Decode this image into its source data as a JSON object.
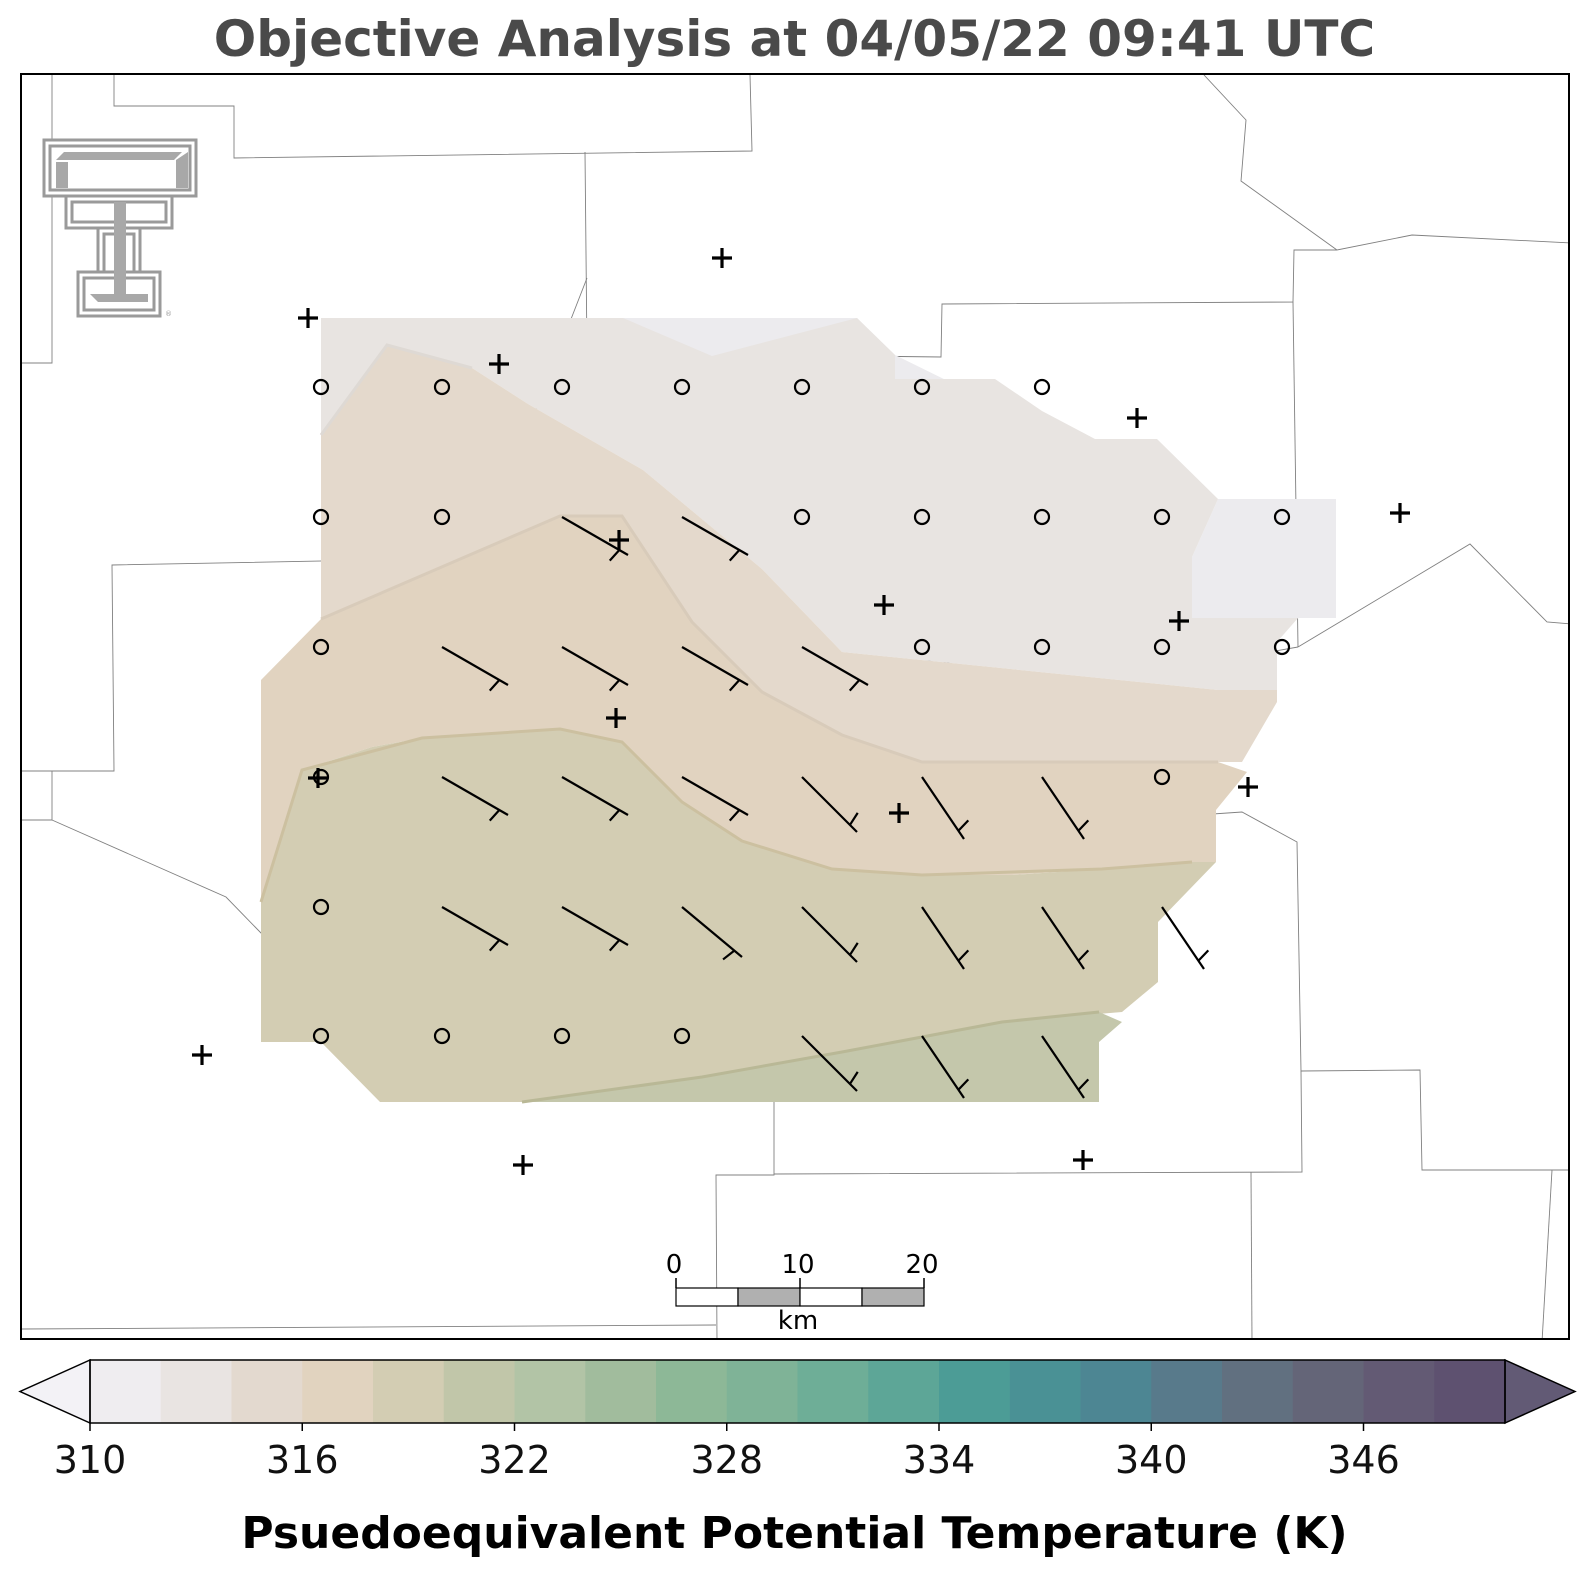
{
  "title": "Objective Analysis at 04/05/22 09:41 UTC",
  "logo": {
    "name": "texas-tech-double-t-logo",
    "color": "#9a9a9a"
  },
  "map": {
    "contour_levels_K": [
      314,
      316,
      318,
      320
    ],
    "contour_fill_colors": [
      "#e8e4e0",
      "#e4d9cc",
      "#e1d3c0",
      "#d3cdb3",
      "#c4c7ab"
    ],
    "station_marker": "plus",
    "grid_calm_marker": "circle"
  },
  "scale_bar": {
    "ticks": [
      "0",
      "10",
      "20"
    ],
    "unit": "km"
  },
  "colorbar": {
    "label": "Psuedoequivalent Potential Temperature (K)",
    "min": 310,
    "max": 350,
    "step": 2,
    "tick_labels": [
      "310",
      "316",
      "322",
      "328",
      "334",
      "340",
      "346"
    ],
    "tick_values": [
      310,
      316,
      322,
      328,
      334,
      340,
      346
    ],
    "colors": [
      "#efedf0",
      "#e9e4e2",
      "#e3d9cf",
      "#e1d3bf",
      "#d3cdb3",
      "#c1c6a9",
      "#b2c4a6",
      "#a1bc9d",
      "#8db897",
      "#7fb397",
      "#6eae97",
      "#5da697",
      "#4c9c96",
      "#4a9195",
      "#4d8693",
      "#587a8b",
      "#617080",
      "#646578",
      "#635a74",
      "#5e5170"
    ],
    "extend_min_color": "#f3f2f6",
    "extend_max_color": "#625a75"
  }
}
